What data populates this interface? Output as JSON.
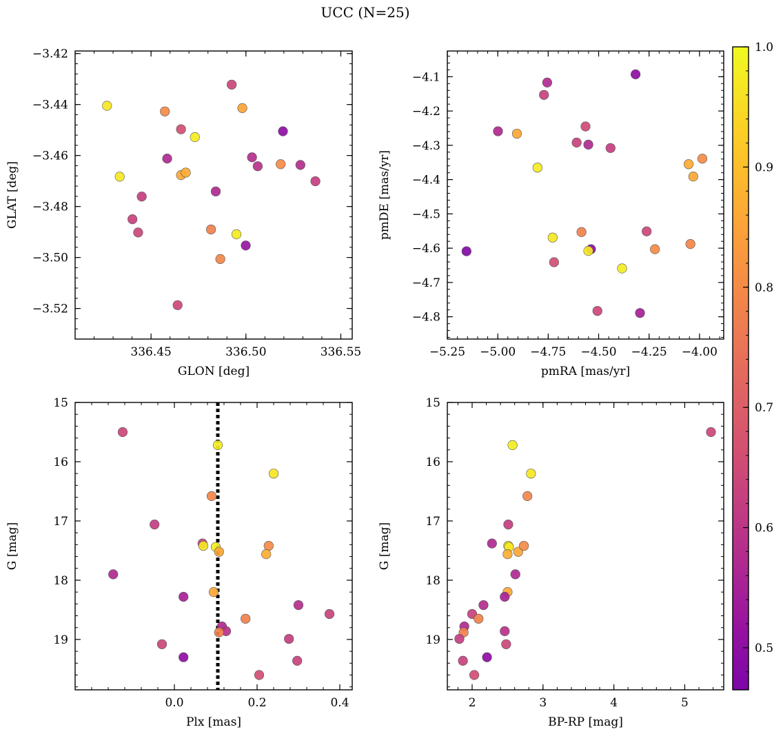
{
  "suptitle": "UCC (N=25)",
  "colorbar": {
    "range": [
      0.465,
      1.0
    ],
    "ticks": [
      0.5,
      0.6,
      0.7,
      0.8,
      0.9,
      1.0
    ],
    "tick_labels": [
      "0.5",
      "0.6",
      "0.7",
      "0.8",
      "0.9",
      "1.0"
    ],
    "colormap": "plasma"
  },
  "colors": {
    "marker_edge": "#555555",
    "vline": "#000000"
  },
  "chart_data": [
    {
      "type": "scatter",
      "xlabel": "GLON [deg]",
      "ylabel": "GLAT [deg]",
      "xlim": [
        336.41,
        336.556
      ],
      "ylim": [
        -3.532,
        -3.419
      ],
      "y_inverted": false,
      "xticks": [
        336.45,
        336.5,
        336.55
      ],
      "xtick_labels": [
        "336.45",
        "336.50",
        "336.55"
      ],
      "yticks": [
        -3.52,
        -3.5,
        -3.48,
        -3.46,
        -3.44,
        -3.42
      ],
      "ytick_labels": [
        "−3.52",
        "−3.50",
        "−3.48",
        "−3.46",
        "−3.44",
        "−3.42"
      ],
      "x": [
        336.4268,
        336.4573,
        336.4658,
        336.4658,
        336.4731,
        336.4925,
        336.4981,
        336.5195,
        336.4585,
        336.4683,
        336.4335,
        336.4451,
        336.5032,
        336.5062,
        336.5183,
        336.5287,
        336.5366,
        336.4841,
        336.4402,
        336.4432,
        336.4816,
        336.495,
        336.4999,
        336.4865,
        336.464
      ],
      "y": [
        -3.4405,
        -3.4427,
        -3.4497,
        -3.4677,
        -3.4528,
        -3.4322,
        -3.4414,
        -3.4505,
        -3.4612,
        -3.4667,
        -3.4683,
        -3.4761,
        -3.4607,
        -3.4642,
        -3.4634,
        -3.4637,
        -3.4701,
        -3.4741,
        -3.485,
        -3.4902,
        -3.489,
        -3.4909,
        -3.4953,
        -3.5006,
        -3.5187
      ],
      "c": [
        0.97,
        0.8,
        0.66,
        0.86,
        0.98,
        0.64,
        0.85,
        0.5,
        0.57,
        0.87,
        0.97,
        0.62,
        0.58,
        0.59,
        0.8,
        0.58,
        0.62,
        0.57,
        0.63,
        0.64,
        0.78,
        0.98,
        0.52,
        0.79,
        0.64
      ]
    },
    {
      "type": "scatter",
      "xlabel": "pmRA [mas/yr]",
      "ylabel": "pmDE [mas/yr]",
      "xlim": [
        -5.25,
        -3.88
      ],
      "ylim": [
        -4.865,
        -4.025
      ],
      "y_inverted": false,
      "xticks": [
        -5.25,
        -5.0,
        -4.75,
        -4.5,
        -4.25,
        -4.0
      ],
      "xtick_labels": [
        "−5.25",
        "−5.00",
        "−4.75",
        "−4.50",
        "−4.25",
        "−4.00"
      ],
      "yticks": [
        -4.8,
        -4.7,
        -4.6,
        -4.5,
        -4.4,
        -4.3,
        -4.2,
        -4.1
      ],
      "ytick_labels": [
        "−4.8",
        "−4.7",
        "−4.6",
        "−4.5",
        "−4.4",
        "−4.3",
        "−4.2",
        "−4.1"
      ],
      "x": [
        -4.317,
        -4.755,
        -4.771,
        -4.999,
        -4.905,
        -4.565,
        -4.609,
        -4.551,
        -4.441,
        -4.803,
        -4.054,
        -3.986,
        -4.031,
        -5.155,
        -4.585,
        -4.262,
        -4.221,
        -4.045,
        -4.538,
        -4.551,
        -4.728,
        -4.721,
        -4.384,
        -4.506,
        -4.295
      ],
      "y": [
        -4.093,
        -4.117,
        -4.153,
        -4.259,
        -4.266,
        -4.245,
        -4.292,
        -4.298,
        -4.308,
        -4.365,
        -4.355,
        -4.339,
        -4.391,
        -4.609,
        -4.553,
        -4.551,
        -4.603,
        -4.588,
        -4.603,
        -4.608,
        -4.569,
        -4.641,
        -4.659,
        -4.783,
        -4.789
      ],
      "c": [
        0.5,
        0.57,
        0.63,
        0.57,
        0.86,
        0.65,
        0.63,
        0.57,
        0.62,
        0.98,
        0.87,
        0.8,
        0.86,
        0.48,
        0.78,
        0.64,
        0.8,
        0.79,
        0.5,
        0.97,
        0.97,
        0.66,
        0.98,
        0.64,
        0.55
      ]
    },
    {
      "type": "scatter",
      "xlabel": "Plx [mas]",
      "ylabel": "G [mag]",
      "xlim": [
        -0.24,
        0.43
      ],
      "ylim": [
        19.85,
        15.0
      ],
      "y_inverted": true,
      "xticks": [
        0.0,
        0.2,
        0.4
      ],
      "xtick_labels": [
        "0.0",
        "0.2",
        "0.4"
      ],
      "yticks": [
        15,
        16,
        17,
        18,
        19
      ],
      "ytick_labels": [
        "15",
        "16",
        "17",
        "18",
        "19"
      ],
      "vline_x": 0.105,
      "x": [
        -0.125,
        0.105,
        0.24,
        0.09,
        -0.048,
        0.068,
        0.07,
        0.1,
        0.108,
        0.228,
        0.222,
        -0.148,
        0.095,
        0.022,
        0.3,
        0.375,
        0.172,
        0.115,
        0.125,
        0.108,
        0.277,
        -0.03,
        0.022,
        0.297,
        0.205
      ],
      "y": [
        15.5,
        15.72,
        16.2,
        16.58,
        17.06,
        17.38,
        17.42,
        17.44,
        17.52,
        17.42,
        17.56,
        17.9,
        18.2,
        18.28,
        18.42,
        18.57,
        18.65,
        18.78,
        18.86,
        18.88,
        18.99,
        19.08,
        19.3,
        19.36,
        19.6
      ],
      "c": [
        0.64,
        0.98,
        0.97,
        0.79,
        0.62,
        0.63,
        0.97,
        0.98,
        0.86,
        0.8,
        0.87,
        0.57,
        0.86,
        0.55,
        0.58,
        0.63,
        0.78,
        0.57,
        0.59,
        0.78,
        0.62,
        0.64,
        0.5,
        0.63,
        0.66
      ]
    },
    {
      "type": "scatter",
      "xlabel": "BP-RP [mag]",
      "ylabel": "G [mag]",
      "xlim": [
        1.65,
        5.55
      ],
      "ylim": [
        19.85,
        15.0
      ],
      "y_inverted": true,
      "xticks": [
        2,
        3,
        4,
        5
      ],
      "xtick_labels": [
        "2",
        "3",
        "4",
        "5"
      ],
      "yticks": [
        15,
        16,
        17,
        18,
        19
      ],
      "ytick_labels": [
        "15",
        "16",
        "17",
        "18",
        "19"
      ],
      "x": [
        5.37,
        2.57,
        2.83,
        2.78,
        2.51,
        2.28,
        2.51,
        2.52,
        2.65,
        2.73,
        2.5,
        2.61,
        2.5,
        2.46,
        2.16,
        2.0,
        2.09,
        1.89,
        1.88,
        2.46,
        1.82,
        2.48,
        2.21,
        1.87,
        2.03
      ],
      "y": [
        15.5,
        15.72,
        16.2,
        16.58,
        17.06,
        17.38,
        17.42,
        17.44,
        17.52,
        17.42,
        17.56,
        17.9,
        18.2,
        18.28,
        18.42,
        18.57,
        18.65,
        18.78,
        18.88,
        18.86,
        18.99,
        19.08,
        19.3,
        19.36,
        19.6
      ],
      "c": [
        0.64,
        0.98,
        0.97,
        0.79,
        0.62,
        0.57,
        0.98,
        0.97,
        0.86,
        0.8,
        0.87,
        0.57,
        0.86,
        0.55,
        0.58,
        0.63,
        0.78,
        0.57,
        0.78,
        0.59,
        0.62,
        0.64,
        0.5,
        0.63,
        0.66
      ]
    }
  ]
}
